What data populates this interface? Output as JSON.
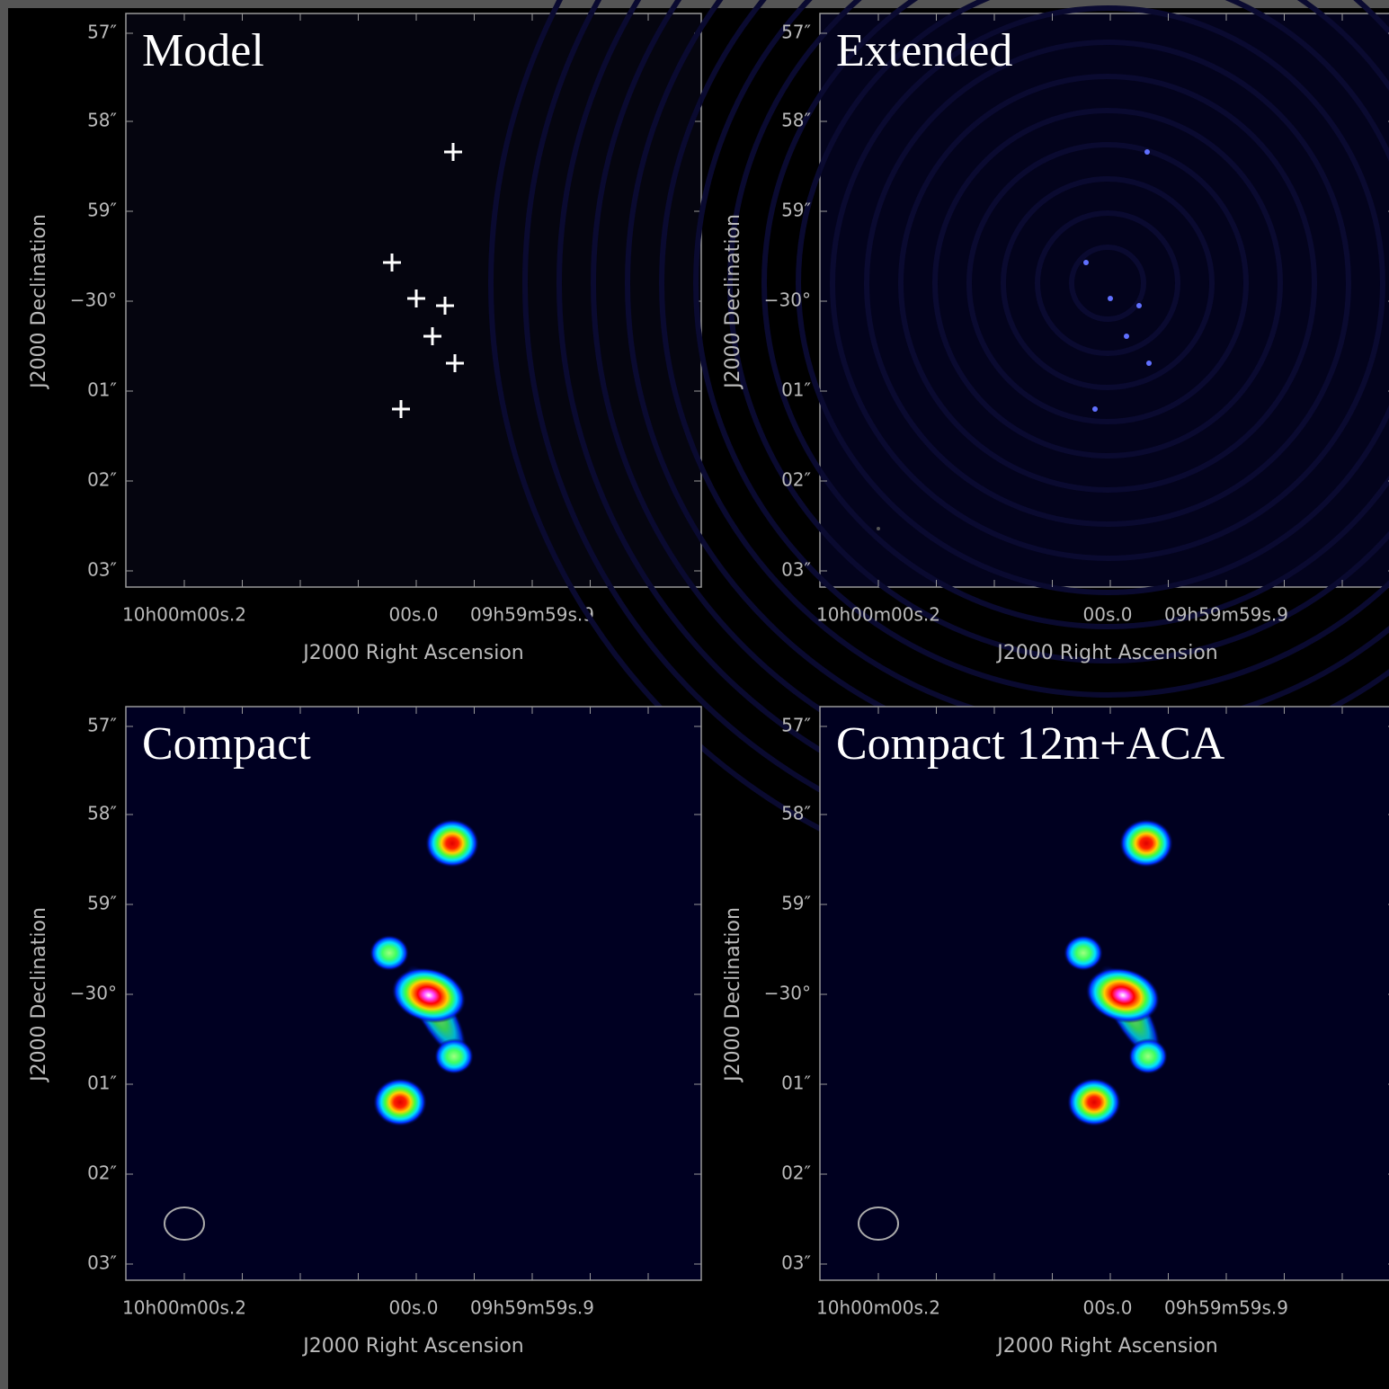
{
  "panels": [
    {
      "title": "Model"
    },
    {
      "title": "Extended"
    },
    {
      "title": "Compact"
    },
    {
      "title": "Compact 12m+ACA"
    }
  ],
  "axes": {
    "x_label": "J2000 Right Ascension",
    "y_label": "J2000 Declination",
    "x_ticks": [
      "10h00m00s.2",
      "00s.0",
      "09h59m59s.9"
    ],
    "y_ticks": [
      "57″",
      "58″",
      "59″",
      "−30°",
      "01″",
      "02″",
      "03″"
    ]
  }
}
